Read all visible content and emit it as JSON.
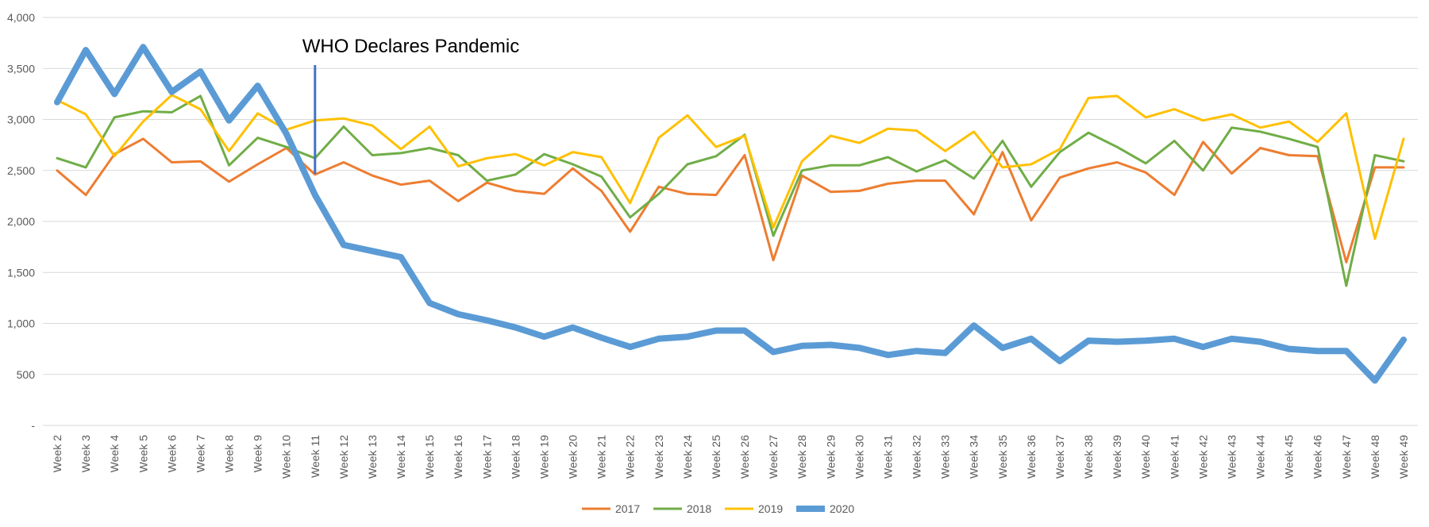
{
  "chart_data": {
    "type": "line",
    "title": "",
    "xlabel": "",
    "ylabel": "",
    "ylim": [
      0,
      4000
    ],
    "yticks": [
      0,
      500,
      1000,
      1500,
      2000,
      2500,
      3000,
      3500,
      4000
    ],
    "yticklabels": [
      "-",
      "500",
      "1,000",
      "1,500",
      "2,000",
      "2,500",
      "3,000",
      "3,500",
      "4,000"
    ],
    "grid": true,
    "legend": "bottom",
    "categories": [
      "Week 2",
      "Week 3",
      "Week 4",
      "Week 5",
      "Week 6",
      "Week 7",
      "Week 8",
      "Week 9",
      "Week 10",
      "Week 11",
      "Week 12",
      "Week 13",
      "Week 14",
      "Week 15",
      "Week 16",
      "Week 17",
      "Week 18",
      "Week 19",
      "Week 20",
      "Week 21",
      "Week 22",
      "Week 23",
      "Week 24",
      "Week 25",
      "Week 26",
      "Week 27",
      "Week 28",
      "Week 29",
      "Week 30",
      "Week 31",
      "Week 32",
      "Week 33",
      "Week 34",
      "Week 35",
      "Week 36",
      "Week 37",
      "Week 38",
      "Week 39",
      "Week 40",
      "Week 41",
      "Week 42",
      "Week 43",
      "Week 44",
      "Week 45",
      "Week 46",
      "Week 47",
      "Week 48",
      "Week 49"
    ],
    "series": [
      {
        "name": "2017",
        "color": "#ED7D31",
        "values": [
          2500,
          2260,
          2660,
          2810,
          2580,
          2590,
          2390,
          2560,
          2720,
          2460,
          2580,
          2450,
          2360,
          2400,
          2200,
          2380,
          2300,
          2270,
          2520,
          2300,
          1900,
          2340,
          2270,
          2260,
          2650,
          1620,
          2450,
          2290,
          2300,
          2370,
          2400,
          2400,
          2070,
          2680,
          2010,
          2430,
          2520,
          2580,
          2480,
          2260,
          2780,
          2470,
          2720,
          2650,
          2640,
          1600,
          2530,
          2530
        ]
      },
      {
        "name": "2018",
        "color": "#70AD47",
        "values": [
          2620,
          2530,
          3020,
          3080,
          3070,
          3230,
          2550,
          2820,
          2730,
          2620,
          2930,
          2650,
          2670,
          2720,
          2650,
          2400,
          2460,
          2660,
          2560,
          2440,
          2040,
          2270,
          2560,
          2640,
          2850,
          1860,
          2500,
          2550,
          2550,
          2630,
          2490,
          2600,
          2420,
          2790,
          2340,
          2680,
          2870,
          2730,
          2570,
          2790,
          2500,
          2920,
          2880,
          2810,
          2730,
          1370,
          2650,
          2590
        ]
      },
      {
        "name": "2019",
        "color": "#FFC000",
        "values": [
          3190,
          3050,
          2640,
          2980,
          3240,
          3100,
          2690,
          3060,
          2900,
          2990,
          3010,
          2940,
          2710,
          2930,
          2540,
          2620,
          2660,
          2550,
          2680,
          2630,
          2180,
          2820,
          3040,
          2730,
          2840,
          1940,
          2590,
          2840,
          2770,
          2910,
          2890,
          2690,
          2880,
          2530,
          2560,
          2710,
          3210,
          3230,
          3020,
          3100,
          2990,
          3050,
          2920,
          2980,
          2780,
          3060,
          1830,
          2810
        ]
      },
      {
        "name": "2020",
        "color": "#5B9BD5",
        "values": [
          3170,
          3680,
          3250,
          3710,
          3270,
          3470,
          2990,
          3330,
          2860,
          2260,
          1770,
          1710,
          1650,
          1200,
          1090,
          1030,
          960,
          870,
          960,
          860,
          770,
          850,
          870,
          930,
          930,
          720,
          780,
          790,
          760,
          690,
          730,
          710,
          980,
          760,
          850,
          630,
          830,
          820,
          830,
          850,
          770,
          850,
          820,
          750,
          730,
          730,
          440,
          840
        ]
      }
    ],
    "annotations": [
      {
        "text": "WHO Declares Pandemic",
        "x": "Week 11"
      }
    ]
  }
}
